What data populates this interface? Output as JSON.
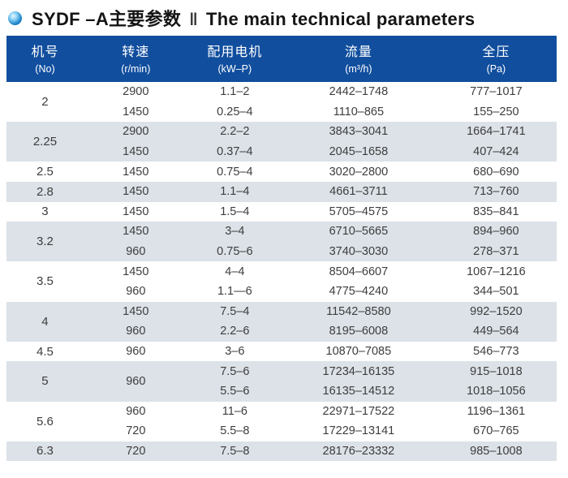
{
  "title": {
    "zh": "SYDF –A主要参数",
    "divider": "‖",
    "en": "The main technical parameters",
    "bullet_icon": "blue-sphere-bullet"
  },
  "colors": {
    "header_bg": "#114e9e",
    "header_text": "#ffffff",
    "row_alt_bg": "#dce2e8",
    "row_bg": "#ffffff",
    "body_text": "#3d3d3d",
    "title_text": "#141414"
  },
  "table": {
    "columns": [
      {
        "zh": "机号",
        "unit": "(No)"
      },
      {
        "zh": "转速",
        "unit": "(r/min)"
      },
      {
        "zh": "配用电机",
        "unit": "(kW–P)"
      },
      {
        "zh": "流量",
        "unit": "(m³/h)"
      },
      {
        "zh": "全压",
        "unit": "(Pa)"
      }
    ],
    "groups": [
      {
        "no": "2",
        "shaded": false,
        "rows": [
          {
            "rpm": "2900",
            "motor": "1.1–2",
            "flow": "2442–1748",
            "pressure": "777–1017"
          },
          {
            "rpm": "1450",
            "motor": "0.25–4",
            "flow": "1110–865",
            "pressure": "155–250"
          }
        ]
      },
      {
        "no": "2.25",
        "shaded": true,
        "rows": [
          {
            "rpm": "2900",
            "motor": "2.2–2",
            "flow": "3843–3041",
            "pressure": "1664–1741"
          },
          {
            "rpm": "1450",
            "motor": "0.37–4",
            "flow": "2045–1658",
            "pressure": "407–424"
          }
        ]
      },
      {
        "no": "2.5",
        "shaded": false,
        "rows": [
          {
            "rpm": "1450",
            "motor": "0.75–4",
            "flow": "3020–2800",
            "pressure": "680–690"
          }
        ]
      },
      {
        "no": "2.8",
        "shaded": true,
        "rows": [
          {
            "rpm": "1450",
            "motor": "1.1–4",
            "flow": "4661–3711",
            "pressure": "713–760"
          }
        ]
      },
      {
        "no": "3",
        "shaded": false,
        "rows": [
          {
            "rpm": "1450",
            "motor": "1.5–4",
            "flow": "5705–4575",
            "pressure": "835–841"
          }
        ]
      },
      {
        "no": "3.2",
        "shaded": true,
        "rows": [
          {
            "rpm": "1450",
            "motor": "3–4",
            "flow": "6710–5665",
            "pressure": "894–960"
          },
          {
            "rpm": "960",
            "motor": "0.75–6",
            "flow": "3740–3030",
            "pressure": "278–371"
          }
        ]
      },
      {
        "no": "3.5",
        "shaded": false,
        "rows": [
          {
            "rpm": "1450",
            "motor": "4–4",
            "flow": "8504–6607",
            "pressure": "1067–1216"
          },
          {
            "rpm": "960",
            "motor": "1.1—6",
            "flow": "4775–4240",
            "pressure": "344–501"
          }
        ]
      },
      {
        "no": "4",
        "shaded": true,
        "rows": [
          {
            "rpm": "1450",
            "motor": "7.5–4",
            "flow": "11542–8580",
            "pressure": "992–1520"
          },
          {
            "rpm": "960",
            "motor": "2.2–6",
            "flow": "8195–6008",
            "pressure": "449–564"
          }
        ]
      },
      {
        "no": "4.5",
        "shaded": false,
        "rows": [
          {
            "rpm": "960",
            "motor": "3–6",
            "flow": "10870–7085",
            "pressure": "546–773"
          }
        ]
      },
      {
        "no": "5",
        "shaded": true,
        "rpm_span": "960",
        "rows": [
          {
            "motor": "7.5–6",
            "flow": "17234–16135",
            "pressure": "915–1018"
          },
          {
            "motor": "5.5–6",
            "flow": "16135–14512",
            "pressure": "1018–1056"
          }
        ]
      },
      {
        "no": "5.6",
        "shaded": false,
        "rows": [
          {
            "rpm": "960",
            "motor": "11–6",
            "flow": "22971–17522",
            "pressure": "1196–1361"
          },
          {
            "rpm": "720",
            "motor": "5.5–8",
            "flow": "17229–13141",
            "pressure": "670–765"
          }
        ]
      },
      {
        "no": "6.3",
        "shaded": true,
        "rows": [
          {
            "rpm": "720",
            "motor": "7.5–8",
            "flow": "28176–23332",
            "pressure": "985–1008"
          }
        ]
      }
    ]
  }
}
